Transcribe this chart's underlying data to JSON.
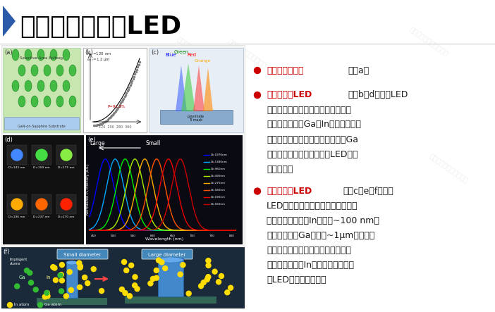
{
  "title": "选区生长纳米线LED",
  "bg_color": "#ffffff",
  "triangle_color": "#2b5ba8",
  "title_color": "#000000",
  "bullet_color": "#cc0000",
  "bullet1_line1_red": "选区生长示意图",
  "bullet1_line1_black": "（图a）",
  "bullet2_line1_red": "组装纳米线LED",
  "bullet2_line1_black": "（图b，d，纳米LED",
  "bullet2_lines": [
    "间距较小）：由于相邻纳米线的阴影",
    "效应以及侧壁上Ga和In原子扩散长度",
    "的差异，随着纳米线直径的增加，Ga",
    "原子的吸收率降低，纳米线LED发射",
    "波长红移。"
  ],
  "bullet3_line1_red": "独立纳米线LED",
  "bullet3_line1_black": "（图c，e，f，纳米",
  "bullet3_lines": [
    "LED间距较大）：在较高的生长温度",
    "下，由于热脱附，In原子（~100 nm）",
    "的扩散长度比Ga原子（~1μm）的扩散",
    "长度短得多。随着纳米线直径增加，",
    "由于横向扩散，In掺杂量减少，纳米",
    "线LED发射波长蓝移。"
  ],
  "text_color": "#1a1a1a",
  "red_color": "#cc0000",
  "peak_wls": [
    480,
    505,
    530,
    555,
    580,
    610,
    640,
    670
  ],
  "peak_colors": [
    "#0000ff",
    "#00aaff",
    "#00ee00",
    "#aaee00",
    "#ffaa00",
    "#ff5500",
    "#ee0000",
    "#cc0000"
  ]
}
